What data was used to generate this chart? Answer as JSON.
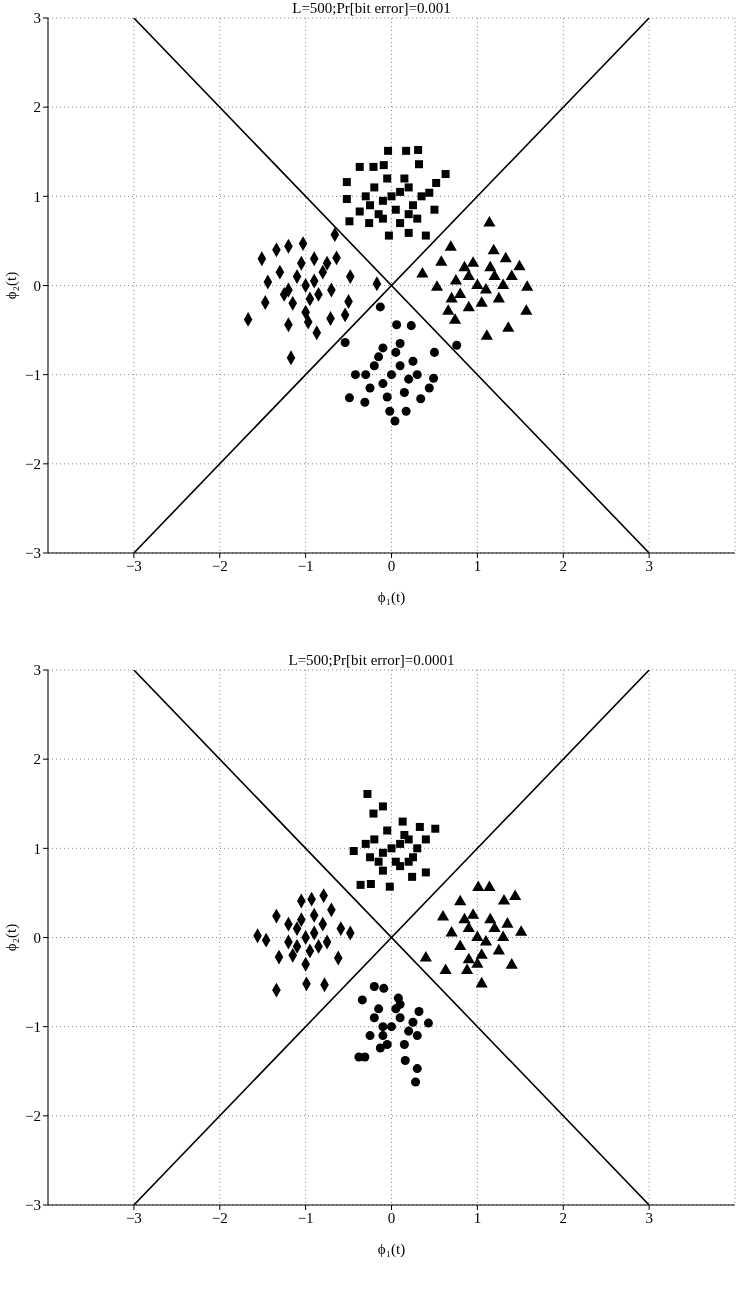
{
  "chart_data": [
    {
      "type": "scatter",
      "title": "L=500;Pr[bit error]=0.001",
      "xlabel": "ϕ₁(t)",
      "ylabel": "ϕ₂(t)",
      "xlim": [
        -4,
        4
      ],
      "ylim": [
        -3,
        3
      ],
      "xticks": [
        -3,
        -2,
        -1,
        0,
        1,
        2,
        3
      ],
      "yticks": [
        -3,
        -2,
        -1,
        0,
        1,
        2,
        3
      ],
      "grid": true,
      "legend": false,
      "series": [
        {
          "type": "line",
          "marker": "none",
          "color": "#000000",
          "x": [
            -3,
            3
          ],
          "values": [
            3,
            -3
          ]
        },
        {
          "type": "line",
          "marker": "none",
          "color": "#000000",
          "x": [
            -3,
            3
          ],
          "values": [
            -3,
            3
          ]
        },
        {
          "marker": "square",
          "color": "#000000",
          "x": [
            -0.04,
            0.17,
            0.31,
            -0.37,
            -0.21,
            -0.09,
            0.32,
            0.63,
            -0.52,
            0.52,
            -0.52,
            0.44,
            0.5,
            -0.49,
            -0.26,
            -0.03,
            0.2,
            0.4,
            -0.37,
            0,
            0.1,
            -0.1,
            0.2,
            -0.2,
            0.05,
            -0.15,
            0.25,
            0.3,
            -0.3,
            0.15,
            -0.05,
            0.35,
            -0.25,
            0.1,
            -0.1,
            0.2
          ],
          "values": [
            1.51,
            1.51,
            1.52,
            1.33,
            1.33,
            1.35,
            1.36,
            1.25,
            1.16,
            1.15,
            0.97,
            1.04,
            0.85,
            0.72,
            0.7,
            0.56,
            0.59,
            0.56,
            0.83,
            1,
            1.05,
            0.95,
            1.1,
            1.1,
            0.85,
            0.8,
            0.9,
            0.75,
            1.0,
            1.2,
            1.2,
            1.0,
            0.9,
            0.7,
            0.75,
            0.8
          ]
        },
        {
          "marker": "diamond",
          "color": "#000000",
          "x": [
            -1.51,
            -1.34,
            -1.2,
            -1.03,
            -0.66,
            -1.67,
            -1.17,
            -0.87,
            -1.2,
            -0.54,
            -0.5,
            -0.48,
            -0.17,
            -1.47,
            -1.44,
            -0.71,
            -0.97,
            -0.64,
            -1,
            -1.1,
            -0.9,
            -1.2,
            -0.8,
            -1.05,
            -0.95,
            -1.15,
            -0.85,
            -1.3,
            -0.75,
            -1.25,
            -0.7,
            -1.0,
            -0.9
          ],
          "values": [
            0.3,
            0.4,
            0.44,
            0.47,
            0.57,
            -0.38,
            -0.81,
            -0.53,
            -0.44,
            -0.33,
            -0.18,
            0.1,
            0.02,
            -0.19,
            0.04,
            -0.37,
            -0.41,
            0.31,
            0,
            0.1,
            0.05,
            -0.05,
            0.15,
            0.25,
            -0.15,
            -0.2,
            -0.1,
            0.15,
            0.25,
            -0.1,
            -0.05,
            -0.3,
            0.3
          ]
        },
        {
          "marker": "triangle",
          "color": "#000000",
          "x": [
            1.14,
            0.69,
            1.19,
            1.33,
            1.49,
            0.36,
            1.58,
            1.57,
            1.36,
            1.11,
            0.74,
            0.66,
            0.53,
            0.58,
            1,
            0.9,
            1.1,
            0.8,
            1.2,
            0.95,
            1.05,
            0.85,
            1.3,
            0.75,
            1.15,
            0.9,
            1.25,
            1.4,
            0.7
          ],
          "values": [
            0.7,
            0.43,
            0.39,
            0.3,
            0.21,
            0.13,
            -0.02,
            -0.29,
            -0.48,
            -0.57,
            -0.39,
            -0.29,
            -0.02,
            0.26,
            0,
            0.1,
            -0.05,
            -0.1,
            0.1,
            0.25,
            -0.2,
            0.2,
            0,
            0.05,
            0.2,
            -0.25,
            -0.15,
            0.1,
            -0.15
          ]
        },
        {
          "marker": "circle",
          "color": "#000000",
          "x": [
            -0.13,
            -0.54,
            0.76,
            0.06,
            0.23,
            -0.49,
            0.04,
            -0.02,
            0.17,
            0.34,
            0.44,
            0.5,
            0.49,
            -0.42,
            -0.31,
            0,
            0.1,
            -0.1,
            0.2,
            -0.2,
            0.05,
            -0.15,
            0.25,
            -0.25,
            0.15,
            -0.05,
            0.3,
            -0.3,
            0.1,
            -0.1
          ],
          "values": [
            -0.24,
            -0.64,
            -0.67,
            -0.44,
            -0.45,
            -1.26,
            -1.52,
            -1.41,
            -1.41,
            -1.27,
            -1.15,
            -0.75,
            -1.04,
            -1.0,
            -1.31,
            -1,
            -0.9,
            -1.1,
            -1.05,
            -0.9,
            -0.75,
            -0.8,
            -0.85,
            -1.15,
            -1.2,
            -1.25,
            -1.0,
            -1.0,
            -0.65,
            -0.7
          ]
        }
      ]
    },
    {
      "type": "scatter",
      "title": "L=500;Pr[bit error]=0.0001",
      "xlabel": "ϕ₁(t)",
      "ylabel": "ϕ₂(t)",
      "xlim": [
        -4,
        4
      ],
      "ylim": [
        -3,
        3
      ],
      "xticks": [
        -3,
        -2,
        -1,
        0,
        1,
        2,
        3
      ],
      "yticks": [
        -3,
        -2,
        -1,
        0,
        1,
        2,
        3
      ],
      "grid": true,
      "legend": false,
      "series": [
        {
          "type": "line",
          "marker": "none",
          "color": "#000000",
          "x": [
            -3,
            3
          ],
          "values": [
            3,
            -3
          ]
        },
        {
          "type": "line",
          "marker": "none",
          "color": "#000000",
          "x": [
            -3,
            3
          ],
          "values": [
            -3,
            3
          ]
        },
        {
          "marker": "square",
          "color": "#000000",
          "x": [
            -0.28,
            -0.1,
            -0.21,
            0.51,
            -0.44,
            -0.36,
            -0.24,
            -0.02,
            0.24,
            0.4,
            0.4,
            0.33,
            0.13,
            0,
            0.1,
            -0.1,
            0.2,
            -0.2,
            0.05,
            -0.15,
            0.25,
            -0.3,
            0.15,
            -0.05,
            0.3,
            -0.25,
            0.1,
            -0.1,
            0.2
          ],
          "values": [
            1.61,
            1.47,
            1.39,
            1.22,
            0.97,
            0.59,
            0.6,
            0.57,
            0.68,
            0.73,
            1.1,
            1.24,
            1.3,
            1,
            1.05,
            0.95,
            1.1,
            1.1,
            0.85,
            0.85,
            0.9,
            1.05,
            1.15,
            1.2,
            1.0,
            0.9,
            0.8,
            0.75,
            0.85
          ]
        },
        {
          "marker": "diamond",
          "color": "#000000",
          "x": [
            -1.56,
            -1.46,
            -1.34,
            -0.78,
            -0.99,
            -0.79,
            -0.93,
            -1.05,
            -0.48,
            -0.59,
            -1.34,
            -1.31,
            -0.62,
            -0.7,
            -1,
            -1.1,
            -0.9,
            -1.2,
            -0.8,
            -1.05,
            -0.95,
            -1.15,
            -0.85,
            -1.2,
            -0.75,
            -1.0,
            -0.9,
            -1.1
          ],
          "values": [
            0.02,
            -0.03,
            -0.59,
            -0.53,
            -0.52,
            0.47,
            0.43,
            0.41,
            0.05,
            0.1,
            0.24,
            -0.22,
            -0.23,
            0.31,
            0,
            0.1,
            0.05,
            -0.05,
            0.15,
            0.2,
            -0.15,
            -0.2,
            -0.1,
            0.15,
            -0.05,
            -0.3,
            0.25,
            -0.1
          ]
        },
        {
          "marker": "triangle",
          "color": "#000000",
          "x": [
            1.01,
            1.14,
            1.44,
            1.51,
            0.4,
            0.63,
            1.05,
            1.4,
            0.8,
            0.6,
            1.31,
            0.88,
            1,
            0.9,
            1.1,
            0.8,
            1.2,
            0.95,
            1.05,
            0.85,
            1.3,
            0.7,
            1.15,
            0.9,
            1.25,
            1.35,
            1.0
          ],
          "values": [
            0.56,
            0.56,
            0.46,
            0.06,
            -0.23,
            -0.37,
            -0.52,
            -0.31,
            0.4,
            0.23,
            0.41,
            -0.37,
            0,
            0.1,
            -0.05,
            -0.1,
            0.1,
            0.25,
            -0.2,
            0.2,
            0,
            0.05,
            0.2,
            -0.25,
            -0.15,
            0.15,
            -0.3
          ]
        },
        {
          "marker": "circle",
          "color": "#000000",
          "x": [
            -0.2,
            -0.09,
            0.08,
            0.32,
            0.43,
            -0.38,
            -0.31,
            0.3,
            0.28,
            0.16,
            -0.13,
            -0.34,
            0,
            0.1,
            -0.1,
            0.2,
            -0.2,
            0.05,
            -0.15,
            0.25,
            -0.25,
            0.15,
            -0.05,
            0.3,
            0.1,
            -0.1
          ],
          "values": [
            -0.55,
            -0.57,
            -0.68,
            -0.83,
            -0.96,
            -1.34,
            -1.34,
            -1.47,
            -1.62,
            -1.38,
            -1.24,
            -0.7,
            -1,
            -0.9,
            -1.1,
            -1.05,
            -0.9,
            -0.8,
            -0.8,
            -0.95,
            -1.1,
            -1.2,
            -1.2,
            -1.1,
            -0.75,
            -1.0
          ]
        }
      ]
    }
  ]
}
